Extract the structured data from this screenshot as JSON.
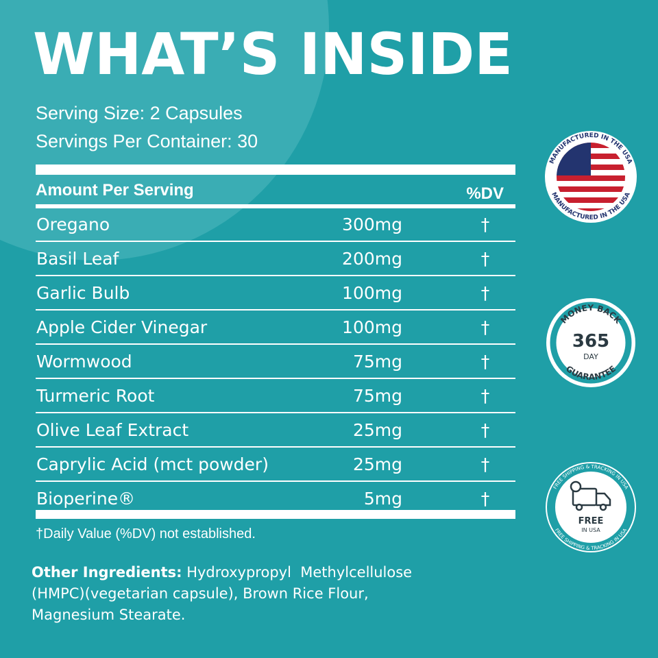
{
  "title": "WHAT’S INSIDE",
  "serving_size": "Serving Size: 2 Capsules",
  "servings_per_container": "Servings Per Container: 30",
  "table": {
    "header": [
      "Amount Per Serving",
      "%DV"
    ],
    "rows": [
      [
        "Oregano",
        "300mg",
        "†"
      ],
      [
        "Basil Leaf",
        "200mg",
        "†"
      ],
      [
        "Garlic Bulb",
        "100mg",
        "†"
      ],
      [
        "Apple Cider Vinegar",
        "100mg",
        "†"
      ],
      [
        "Wormwood",
        "75mg",
        "†"
      ],
      [
        "Turmeric Root",
        "75mg",
        "†"
      ],
      [
        "Olive Leaf Extract",
        "25mg",
        "†"
      ],
      [
        "Caprylic Acid (mct powder)",
        "25mg",
        "†"
      ],
      [
        "Bioperine®",
        "5mg",
        "†"
      ]
    ],
    "footnote": "†Daily Value (%DV) not established."
  },
  "other_ingredients": {
    "label": "Other Ingredients:",
    "lines": [
      " Hydroxypropyl  Methylcellulose",
      "(HMPC)(vegetarian capsule), Brown Rice Flour,",
      "Magnesium Stearate."
    ]
  },
  "badges": {
    "usa": {
      "top": "MANUFACTURED IN THE USA",
      "bottom": "MANUFACTURED IN THE USA"
    },
    "guarantee": {
      "top": "MONEY BACK",
      "number": "365",
      "unit": "DAY",
      "bottom": "GUARANTEE"
    },
    "shipping": {
      "ring": "FREE SHIPPING & TRACKING IN USA",
      "ring2": "FREE SHIPPING & TRACKING IN USA",
      "big": "FREE",
      "small": "IN USA"
    }
  }
}
